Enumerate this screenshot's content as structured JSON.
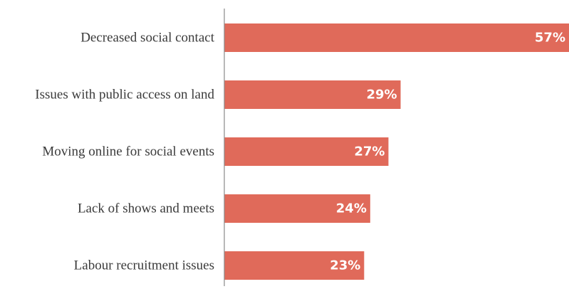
{
  "chart_data": {
    "type": "bar",
    "orientation": "horizontal",
    "categories": [
      "Decreased social contact",
      "Issues with public access on land",
      "Moving online for social events",
      "Lack of shows and meets",
      "Labour recruitment issues"
    ],
    "values": [
      57,
      29,
      27,
      24,
      23
    ],
    "value_labels": [
      "57%",
      "29%",
      "27%",
      "24%",
      "23%"
    ],
    "xlim": [
      0,
      56.7
    ],
    "grid": false,
    "legend": "none",
    "title": "",
    "xlabel": "",
    "ylabel": "",
    "colors": {
      "bar": "#e06a5a",
      "axis": "#8a8a8a",
      "label_text": "#3a3a3a",
      "value_text": "#ffffff"
    }
  }
}
